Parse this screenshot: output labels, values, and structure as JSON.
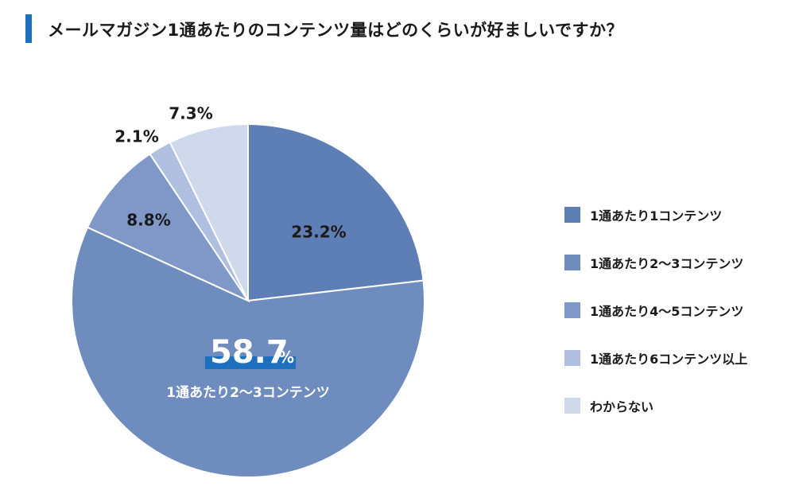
{
  "title": "メールマガジン1通あたりのコンテンツ量はどのくらいが好ましいですか？",
  "chart_data": {
    "type": "pie",
    "title": "メールマガジン1通あたりのコンテンツ量はどのくらいが好ましいですか？",
    "unit": "%",
    "legend_position": "right",
    "start": "12 o'clock, clockwise",
    "slices": [
      {
        "label": "1通あたり1コンテンツ",
        "value": 23.2,
        "value_label": "23.2%",
        "color": "#5e7fb5"
      },
      {
        "label": "1通あたり2〜3コンテンツ",
        "value": 58.7,
        "value_label": "58.7",
        "unit_label": "%",
        "color": "#6f8cbf",
        "highlight": true
      },
      {
        "label": "1通あたり4〜5コンテンツ",
        "value": 8.8,
        "value_label": "8.8%",
        "color": "#7f98c8"
      },
      {
        "label": "1通あたり6コンテンツ以上",
        "value": 2.1,
        "value_label": "2.1%",
        "color": "#b0bfe0"
      },
      {
        "label": "わからない",
        "value": 7.3,
        "value_label": "7.3%",
        "color": "#d0d9eb"
      }
    ],
    "highlight_color": "#1f6fbf"
  }
}
